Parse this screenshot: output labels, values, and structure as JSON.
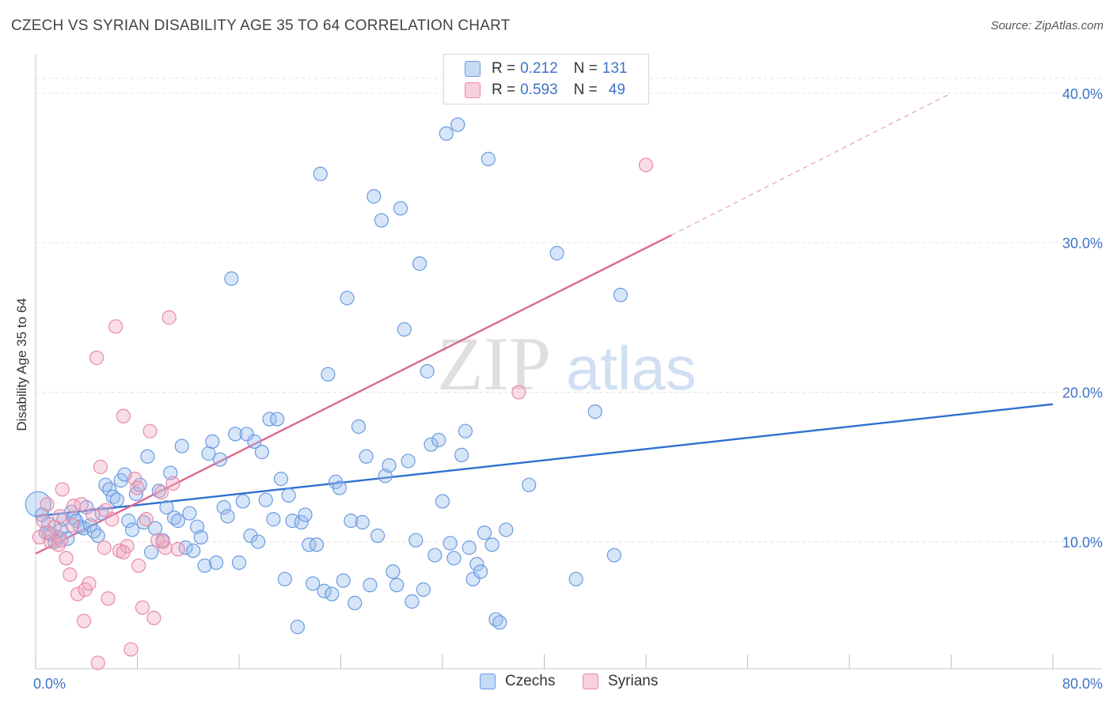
{
  "title": "CZECH VS SYRIAN DISABILITY AGE 35 TO 64 CORRELATION CHART",
  "source": "Source: ZipAtlas.com",
  "watermark": {
    "zip": "ZIP",
    "atlas": "atlas"
  },
  "legend_top": [
    {
      "r_label": "R =",
      "r_value": "0.212",
      "n_label": "N =",
      "n_value": "131",
      "color": "#6a9be0"
    },
    {
      "r_label": "R =",
      "r_value": "0.593",
      "n_label": "N =",
      "n_value": "49",
      "color": "#e88aa8"
    }
  ],
  "legend_bottom": [
    {
      "label": "Czechs",
      "color": "#6a9be0"
    },
    {
      "label": "Syrians",
      "color": "#e88aa8"
    }
  ],
  "chart_data": {
    "type": "scatter",
    "title": "CZECH VS SYRIAN DISABILITY AGE 35 TO 64 CORRELATION CHART",
    "xlabel": "",
    "ylabel": "Disability Age 35 to 64",
    "xlim": [
      0,
      80
    ],
    "ylim": [
      1.5,
      42
    ],
    "x_tick_labels": [
      "0.0%",
      "80.0%"
    ],
    "y_ticks": [
      10,
      20,
      30,
      40
    ],
    "y_tick_labels": [
      "10.0%",
      "20.0%",
      "30.0%",
      "40.0%"
    ],
    "grid": true,
    "legend_position": "top-center",
    "series": [
      {
        "name": "Czechs",
        "color": "#6a9be0",
        "trend": {
          "x": [
            0,
            80
          ],
          "y": [
            11.7,
            19.2
          ]
        },
        "points": [
          [
            0.2,
            12.5
          ],
          [
            0.5,
            11.8
          ],
          [
            0.8,
            10.6
          ],
          [
            1.0,
            11.2
          ],
          [
            1.2,
            10.5
          ],
          [
            1.5,
            10.0
          ],
          [
            1.8,
            10.3
          ],
          [
            2.0,
            10.8
          ],
          [
            2.2,
            11.5
          ],
          [
            2.5,
            10.2
          ],
          [
            2.8,
            12.0
          ],
          [
            3.0,
            11.6
          ],
          [
            3.2,
            11.4
          ],
          [
            3.5,
            11.0
          ],
          [
            3.8,
            10.9
          ],
          [
            4.0,
            12.3
          ],
          [
            4.3,
            11.1
          ],
          [
            4.6,
            10.7
          ],
          [
            4.9,
            10.4
          ],
          [
            5.2,
            11.9
          ],
          [
            5.5,
            13.8
          ],
          [
            5.8,
            13.5
          ],
          [
            6.1,
            13.0
          ],
          [
            6.4,
            12.8
          ],
          [
            6.7,
            14.1
          ],
          [
            7.0,
            14.5
          ],
          [
            7.3,
            11.4
          ],
          [
            7.6,
            10.8
          ],
          [
            7.9,
            13.2
          ],
          [
            8.2,
            13.8
          ],
          [
            8.5,
            11.3
          ],
          [
            8.8,
            15.7
          ],
          [
            9.1,
            9.3
          ],
          [
            9.4,
            10.9
          ],
          [
            9.7,
            13.4
          ],
          [
            10.0,
            10.1
          ],
          [
            10.3,
            12.3
          ],
          [
            10.6,
            14.6
          ],
          [
            10.9,
            11.6
          ],
          [
            11.2,
            11.4
          ],
          [
            11.5,
            16.4
          ],
          [
            11.8,
            9.6
          ],
          [
            12.1,
            11.9
          ],
          [
            12.4,
            9.4
          ],
          [
            12.7,
            11.0
          ],
          [
            13.0,
            10.3
          ],
          [
            13.3,
            8.4
          ],
          [
            13.6,
            15.9
          ],
          [
            13.9,
            16.7
          ],
          [
            14.2,
            8.6
          ],
          [
            14.5,
            15.5
          ],
          [
            14.8,
            12.3
          ],
          [
            15.1,
            11.7
          ],
          [
            15.4,
            27.6
          ],
          [
            15.7,
            17.2
          ],
          [
            16.0,
            8.6
          ],
          [
            16.3,
            12.7
          ],
          [
            16.6,
            17.2
          ],
          [
            16.9,
            10.4
          ],
          [
            17.2,
            16.7
          ],
          [
            17.5,
            10.0
          ],
          [
            17.8,
            16.0
          ],
          [
            18.1,
            12.8
          ],
          [
            18.4,
            18.2
          ],
          [
            18.7,
            11.5
          ],
          [
            19.0,
            18.2
          ],
          [
            19.3,
            14.2
          ],
          [
            19.6,
            7.5
          ],
          [
            19.9,
            13.1
          ],
          [
            20.2,
            11.4
          ],
          [
            20.6,
            4.3
          ],
          [
            20.9,
            11.3
          ],
          [
            21.2,
            11.8
          ],
          [
            21.5,
            9.8
          ],
          [
            21.8,
            7.2
          ],
          [
            22.1,
            9.8
          ],
          [
            22.4,
            34.6
          ],
          [
            22.7,
            6.7
          ],
          [
            23.0,
            21.2
          ],
          [
            23.3,
            6.5
          ],
          [
            23.6,
            14.0
          ],
          [
            23.9,
            13.6
          ],
          [
            24.2,
            7.4
          ],
          [
            24.5,
            26.3
          ],
          [
            24.8,
            11.4
          ],
          [
            25.1,
            5.9
          ],
          [
            25.4,
            17.7
          ],
          [
            25.7,
            11.3
          ],
          [
            26.0,
            15.7
          ],
          [
            26.3,
            7.1
          ],
          [
            26.6,
            33.1
          ],
          [
            26.9,
            10.4
          ],
          [
            27.2,
            31.5
          ],
          [
            27.5,
            14.4
          ],
          [
            27.8,
            15.1
          ],
          [
            28.1,
            8.0
          ],
          [
            28.4,
            7.1
          ],
          [
            28.7,
            32.3
          ],
          [
            29.0,
            24.2
          ],
          [
            29.3,
            15.4
          ],
          [
            29.6,
            6.0
          ],
          [
            29.9,
            10.1
          ],
          [
            30.2,
            28.6
          ],
          [
            30.5,
            6.8
          ],
          [
            30.8,
            21.4
          ],
          [
            31.1,
            16.5
          ],
          [
            31.4,
            9.1
          ],
          [
            31.7,
            16.8
          ],
          [
            32.0,
            12.7
          ],
          [
            32.3,
            37.3
          ],
          [
            32.6,
            9.9
          ],
          [
            32.9,
            8.9
          ],
          [
            33.2,
            37.9
          ],
          [
            33.5,
            15.8
          ],
          [
            33.8,
            17.4
          ],
          [
            34.1,
            9.6
          ],
          [
            34.4,
            7.5
          ],
          [
            34.7,
            8.5
          ],
          [
            35.0,
            8.0
          ],
          [
            35.3,
            10.6
          ],
          [
            35.6,
            35.6
          ],
          [
            35.9,
            9.8
          ],
          [
            36.2,
            4.8
          ],
          [
            36.5,
            4.6
          ],
          [
            37.0,
            10.8
          ],
          [
            38.8,
            13.8
          ],
          [
            41.0,
            29.3
          ],
          [
            42.5,
            7.5
          ],
          [
            44.0,
            18.7
          ],
          [
            45.5,
            9.1
          ],
          [
            46.0,
            26.5
          ]
        ]
      },
      {
        "name": "Syrians",
        "color": "#e88aa8",
        "trend": {
          "x": [
            0,
            50
          ],
          "y": [
            9.2,
            30.5
          ]
        },
        "trend_dashed": {
          "x": [
            50,
            72
          ],
          "y": [
            30.5,
            40.0
          ]
        },
        "points": [
          [
            0.3,
            10.3
          ],
          [
            0.6,
            11.4
          ],
          [
            0.9,
            12.5
          ],
          [
            1.2,
            10.0
          ],
          [
            1.5,
            11.0
          ],
          [
            1.8,
            9.8
          ],
          [
            2.1,
            13.5
          ],
          [
            2.4,
            8.9
          ],
          [
            2.7,
            7.8
          ],
          [
            3.0,
            12.4
          ],
          [
            3.3,
            6.5
          ],
          [
            3.6,
            12.5
          ],
          [
            3.9,
            6.8
          ],
          [
            4.2,
            7.2
          ],
          [
            4.5,
            11.8
          ],
          [
            4.8,
            22.3
          ],
          [
            5.1,
            15.0
          ],
          [
            5.4,
            9.6
          ],
          [
            5.7,
            6.2
          ],
          [
            6.0,
            11.5
          ],
          [
            6.3,
            24.4
          ],
          [
            6.6,
            9.4
          ],
          [
            6.9,
            18.4
          ],
          [
            7.2,
            9.7
          ],
          [
            7.5,
            2.8
          ],
          [
            7.8,
            14.2
          ],
          [
            8.1,
            8.4
          ],
          [
            8.4,
            5.6
          ],
          [
            8.7,
            11.5
          ],
          [
            9.0,
            17.4
          ],
          [
            9.3,
            4.9
          ],
          [
            9.6,
            10.1
          ],
          [
            9.9,
            13.3
          ],
          [
            10.2,
            9.6
          ],
          [
            10.5,
            25.0
          ],
          [
            10.8,
            13.9
          ],
          [
            1.0,
            10.6
          ],
          [
            1.9,
            11.7
          ],
          [
            2.9,
            11.1
          ],
          [
            3.8,
            4.7
          ],
          [
            4.9,
            1.9
          ],
          [
            5.5,
            12.1
          ],
          [
            6.9,
            9.3
          ],
          [
            8.0,
            13.6
          ],
          [
            10.0,
            10.0
          ],
          [
            11.2,
            9.5
          ],
          [
            38.0,
            20.0
          ],
          [
            48.0,
            35.2
          ],
          [
            2.0,
            10.1
          ]
        ]
      }
    ]
  }
}
